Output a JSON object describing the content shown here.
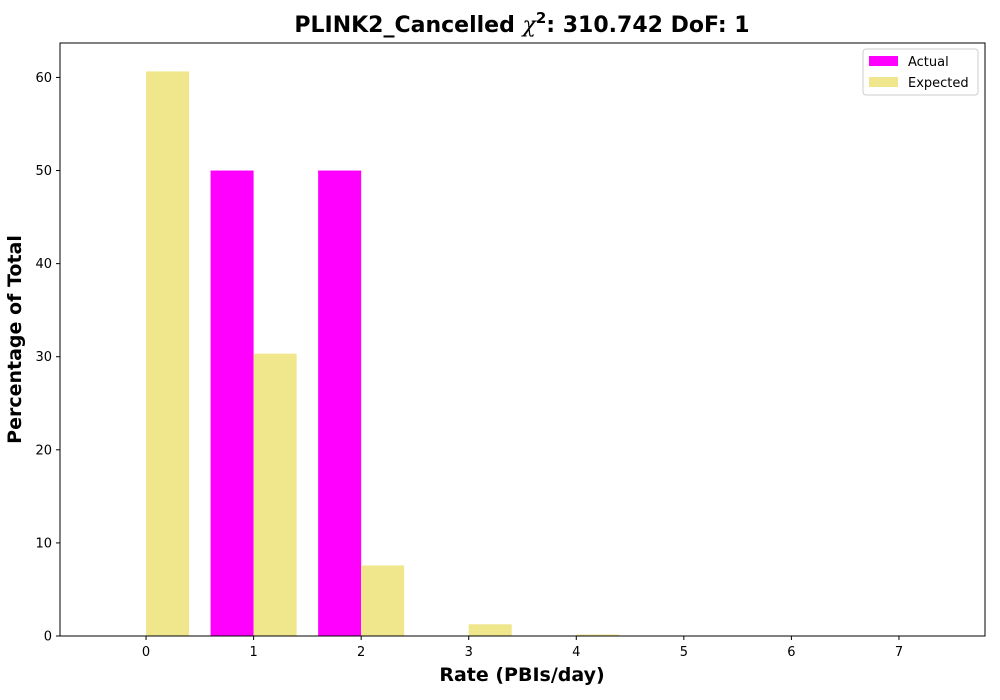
{
  "chart_data": {
    "type": "bar",
    "title_prefix": "PLINK2_Cancelled ",
    "title_chi": "χ",
    "title_sup": "2",
    "title_suffix": ": 310.742 DoF: 1",
    "xlabel": "Rate (PBIs/day)",
    "ylabel": "Percentage of Total",
    "categories": [
      "0",
      "1",
      "2",
      "3",
      "4",
      "5",
      "6",
      "7"
    ],
    "x": [
      0,
      1,
      2,
      3,
      4,
      5,
      6,
      7
    ],
    "xlim": [
      -0.8,
      7.8
    ],
    "ylim": [
      0,
      63.7
    ],
    "yticks": [
      0,
      10,
      20,
      30,
      40,
      50,
      60
    ],
    "series": [
      {
        "name": "Actual",
        "color": "#ff00ff",
        "values": [
          0,
          50,
          50,
          0,
          0,
          0,
          0,
          0
        ]
      },
      {
        "name": "Expected",
        "color": "#f0e68c",
        "values": [
          60.65,
          30.33,
          7.58,
          1.26,
          0.16,
          0.02,
          0.0,
          0.0
        ]
      }
    ],
    "legend_position": "top-right",
    "grid": false
  }
}
